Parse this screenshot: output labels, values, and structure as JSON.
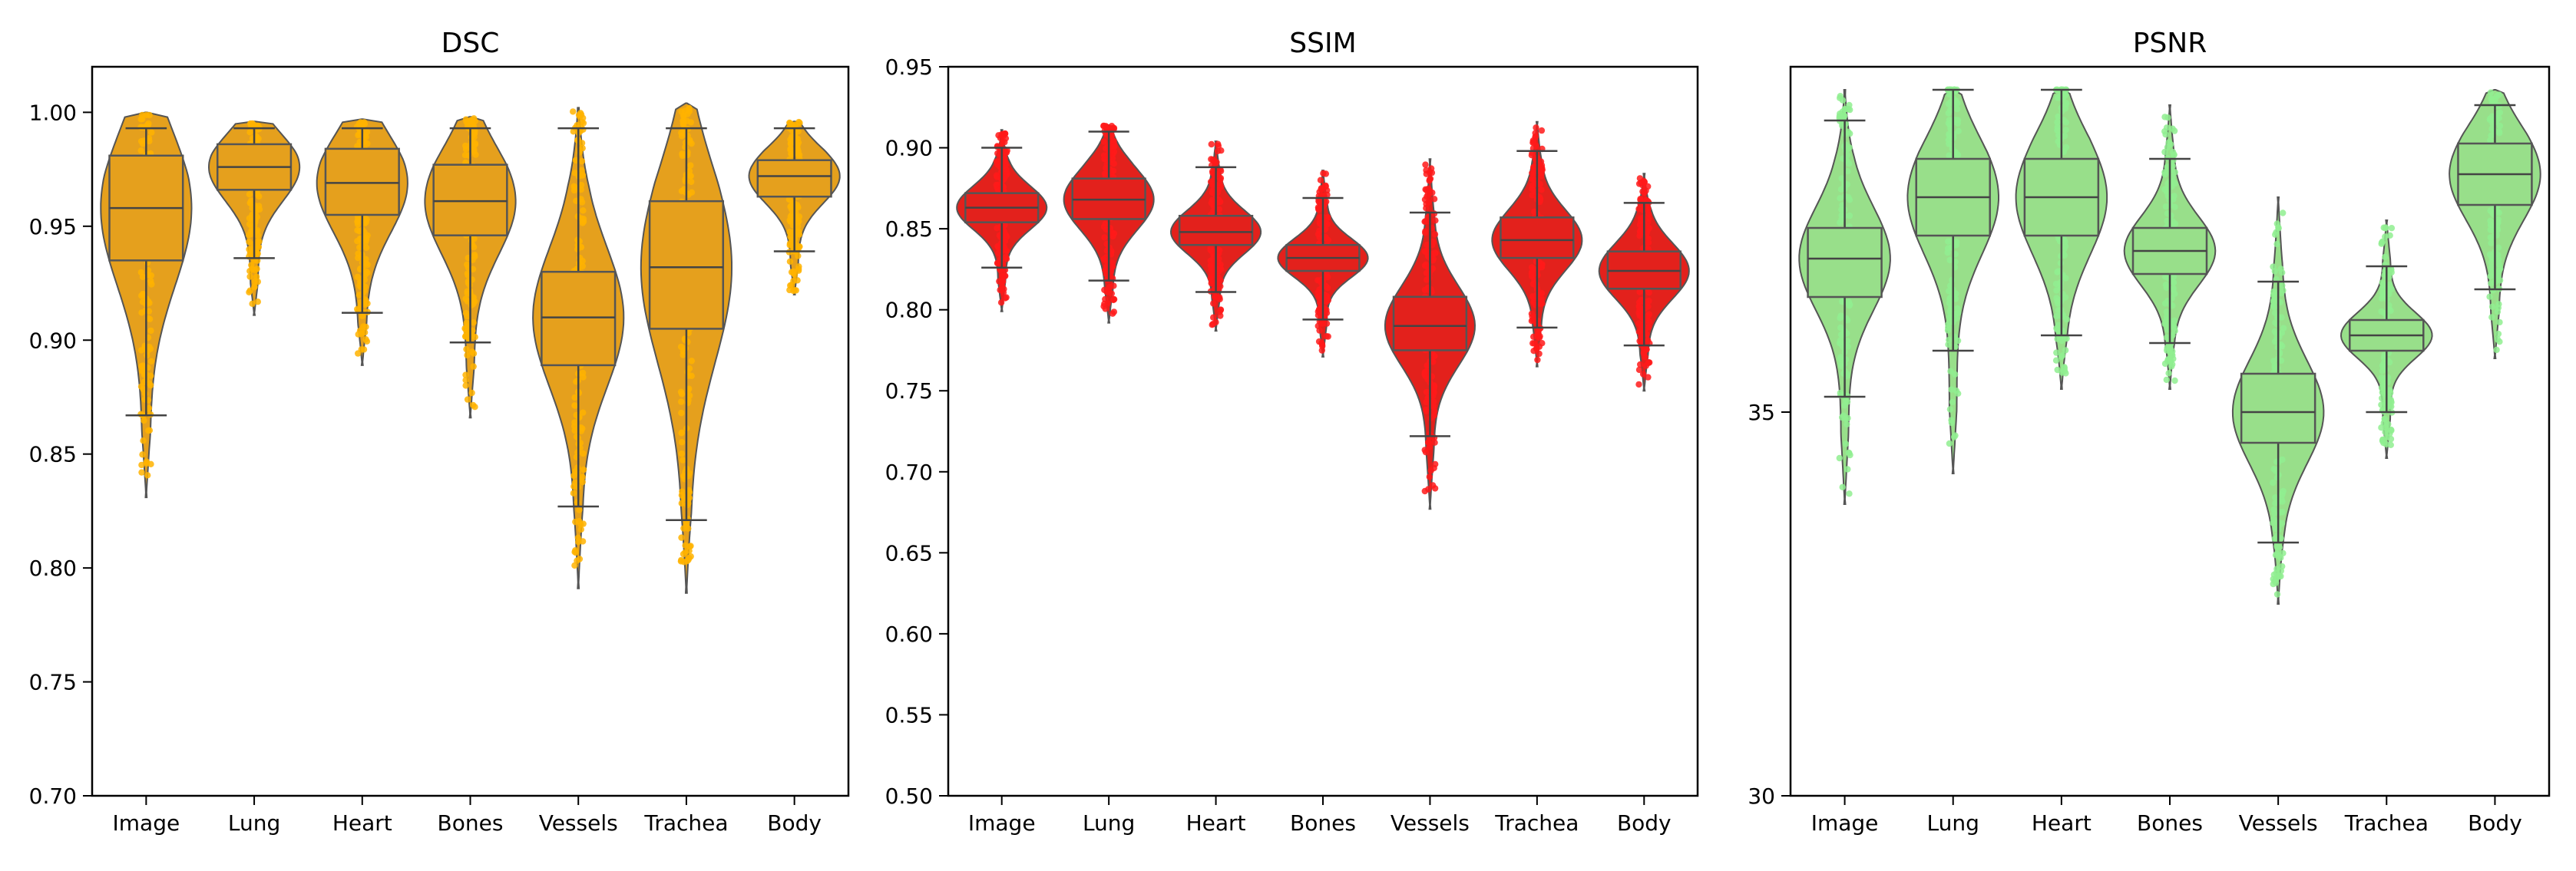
{
  "chart_data": [
    {
      "type": "violin-box",
      "title": "DSC",
      "color": "#E5A01D",
      "pointColor": "#FFB300",
      "categories": [
        "Image",
        "Lung",
        "Heart",
        "Bones",
        "Vessels",
        "Trachea",
        "Body"
      ],
      "ylim": [
        0.7,
        1.02
      ],
      "yticks": [
        0.7,
        0.75,
        0.8,
        0.85,
        0.9,
        0.95,
        1.0
      ],
      "yticklabels": [
        "0.70",
        "0.75",
        "0.80",
        "0.85",
        "0.90",
        "0.95",
        "1.00"
      ],
      "series": [
        {
          "category": "Image",
          "min": 0.831,
          "whisker_low": 0.867,
          "q1": 0.935,
          "median": 0.958,
          "q3": 0.981,
          "whisker_high": 0.993,
          "max": 1.0,
          "outliers_low": 0.838
        },
        {
          "category": "Lung",
          "min": 0.911,
          "whisker_low": 0.936,
          "q1": 0.966,
          "median": 0.976,
          "q3": 0.986,
          "whisker_high": 0.993,
          "max": 0.996,
          "outliers_low": 0.914
        },
        {
          "category": "Heart",
          "min": 0.889,
          "whisker_low": 0.912,
          "q1": 0.955,
          "median": 0.969,
          "q3": 0.984,
          "whisker_high": 0.993,
          "max": 0.997,
          "outliers_low": 0.893
        },
        {
          "category": "Bones",
          "min": 0.866,
          "whisker_low": 0.899,
          "q1": 0.946,
          "median": 0.961,
          "q3": 0.977,
          "whisker_high": 0.993,
          "max": 0.998,
          "outliers_low": 0.87
        },
        {
          "category": "Vessels",
          "min": 0.791,
          "whisker_low": 0.827,
          "q1": 0.889,
          "median": 0.91,
          "q3": 0.93,
          "whisker_high": 0.993,
          "max": 1.002,
          "outliers_low": 0.8
        },
        {
          "category": "Trachea",
          "min": 0.789,
          "whisker_low": 0.821,
          "q1": 0.905,
          "median": 0.932,
          "q3": 0.961,
          "whisker_high": 0.993,
          "max": 1.004,
          "outliers_low": 0.8
        },
        {
          "category": "Body",
          "min": 0.92,
          "whisker_low": 0.939,
          "q1": 0.963,
          "median": 0.972,
          "q3": 0.979,
          "whisker_high": 0.993,
          "max": 0.996,
          "outliers_low": 0.921
        }
      ]
    },
    {
      "type": "violin-box",
      "title": "SSIM",
      "color": "#E3211C",
      "pointColor": "#FF1A1A",
      "categories": [
        "Image",
        "Lung",
        "Heart",
        "Bones",
        "Vessels",
        "Trachea",
        "Body"
      ],
      "ylim": [
        0.5,
        0.95
      ],
      "yticks": [
        0.5,
        0.55,
        0.6,
        0.65,
        0.7,
        0.75,
        0.8,
        0.85,
        0.9,
        0.95
      ],
      "yticklabels": [
        "0.50",
        "0.55",
        "0.60",
        "0.65",
        "0.70",
        "0.75",
        "0.80",
        "0.85",
        "0.90",
        "0.95"
      ],
      "series": [
        {
          "category": "Image",
          "min": 0.799,
          "whisker_low": 0.826,
          "q1": 0.854,
          "median": 0.863,
          "q3": 0.872,
          "whisker_high": 0.9,
          "max": 0.911,
          "outliers_low": 0.801
        },
        {
          "category": "Lung",
          "min": 0.792,
          "whisker_low": 0.818,
          "q1": 0.856,
          "median": 0.868,
          "q3": 0.881,
          "whisker_high": 0.91,
          "max": 0.914,
          "outliers_low": 0.795
        },
        {
          "category": "Heart",
          "min": 0.787,
          "whisker_low": 0.811,
          "q1": 0.84,
          "median": 0.848,
          "q3": 0.858,
          "whisker_high": 0.888,
          "max": 0.904,
          "outliers_low": 0.789
        },
        {
          "category": "Bones",
          "min": 0.771,
          "whisker_low": 0.794,
          "q1": 0.824,
          "median": 0.832,
          "q3": 0.84,
          "whisker_high": 0.869,
          "max": 0.886,
          "outliers_low": 0.773
        },
        {
          "category": "Vessels",
          "min": 0.677,
          "whisker_low": 0.722,
          "q1": 0.775,
          "median": 0.79,
          "q3": 0.808,
          "whisker_high": 0.86,
          "max": 0.893,
          "outliers_low": 0.681
        },
        {
          "category": "Trachea",
          "min": 0.765,
          "whisker_low": 0.789,
          "q1": 0.832,
          "median": 0.843,
          "q3": 0.857,
          "whisker_high": 0.898,
          "max": 0.916,
          "outliers_low": 0.768
        },
        {
          "category": "Body",
          "min": 0.75,
          "whisker_low": 0.778,
          "q1": 0.813,
          "median": 0.824,
          "q3": 0.836,
          "whisker_high": 0.866,
          "max": 0.884,
          "outliers_low": 0.753
        }
      ]
    },
    {
      "type": "violin-box",
      "title": "PSNR",
      "color": "#98DF8A",
      "pointColor": "#90EE90",
      "categories": [
        "Image",
        "Lung",
        "Heart",
        "Bones",
        "Vessels",
        "Trachea",
        "Body"
      ],
      "ylim": [
        30,
        39.5
      ],
      "yticks": [
        30,
        35
      ],
      "yticklabels": [
        "30",
        "35"
      ],
      "series": [
        {
          "category": "Image",
          "min": 33.8,
          "whisker_low": 35.2,
          "q1": 36.5,
          "median": 37.0,
          "q3": 37.4,
          "whisker_high": 38.8,
          "max": 39.2,
          "outliers_low": 33.9
        },
        {
          "category": "Lung",
          "min": 34.2,
          "whisker_low": 35.8,
          "q1": 37.3,
          "median": 37.8,
          "q3": 38.3,
          "whisker_high": 39.2,
          "max": 39.2,
          "outliers_low": 34.5
        },
        {
          "category": "Heart",
          "min": 35.3,
          "whisker_low": 36.0,
          "q1": 37.3,
          "median": 37.8,
          "q3": 38.3,
          "whisker_high": 39.2,
          "max": 39.2,
          "outliers_low": 35.5
        },
        {
          "category": "Bones",
          "min": 35.3,
          "whisker_low": 35.9,
          "q1": 36.8,
          "median": 37.1,
          "q3": 37.4,
          "whisker_high": 38.3,
          "max": 39.0,
          "outliers_low": 35.4
        },
        {
          "category": "Vessels",
          "min": 32.5,
          "whisker_low": 33.3,
          "q1": 34.6,
          "median": 35.0,
          "q3": 35.5,
          "whisker_high": 36.7,
          "max": 37.8,
          "outliers_low": 32.6
        },
        {
          "category": "Trachea",
          "min": 34.4,
          "whisker_low": 35.0,
          "q1": 35.8,
          "median": 36.0,
          "q3": 36.2,
          "whisker_high": 36.9,
          "max": 37.5,
          "outliers_low": 34.5
        },
        {
          "category": "Body",
          "min": 35.7,
          "whisker_low": 36.6,
          "q1": 37.7,
          "median": 38.1,
          "q3": 38.5,
          "whisker_high": 39.0,
          "max": 39.2,
          "outliers_low": 35.8
        }
      ]
    }
  ]
}
